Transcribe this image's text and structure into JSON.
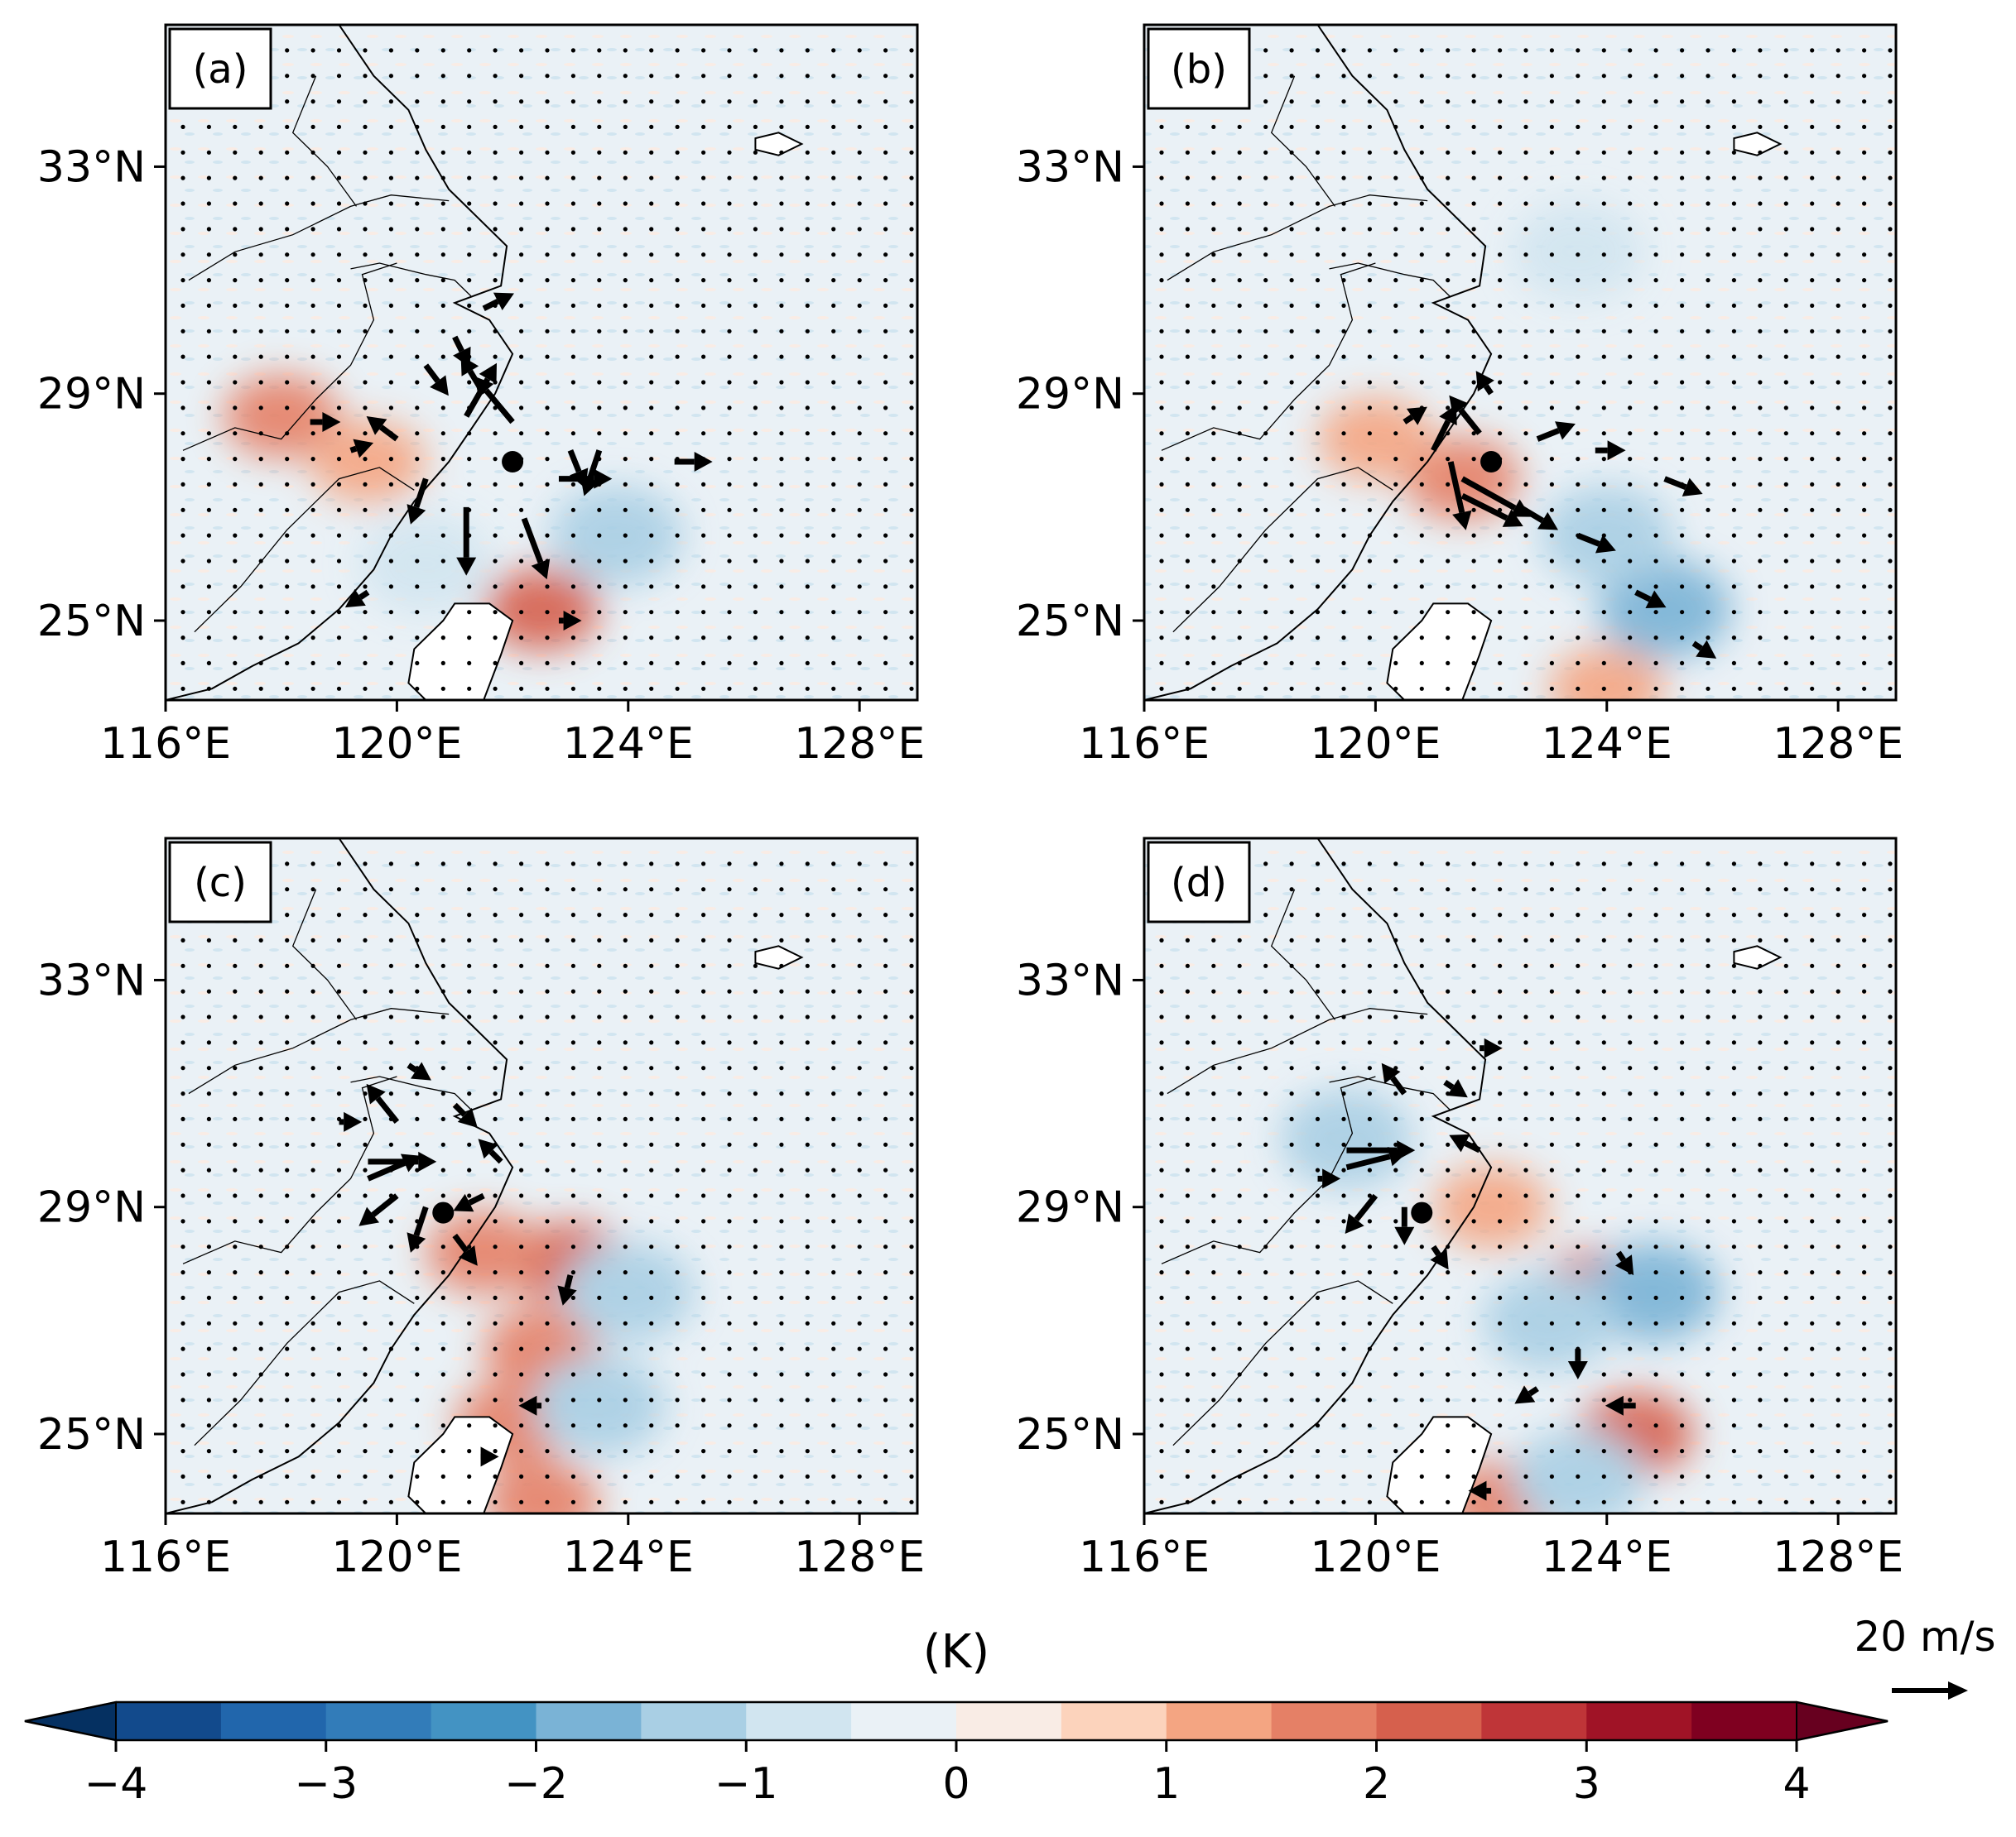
{
  "figure": {
    "colorbar_label": "(K)",
    "colorbar_ticks": [
      "−4",
      "−3",
      "−2",
      "−1",
      "0",
      "1",
      "2",
      "3",
      "4"
    ],
    "colorbar_range": [
      -4,
      4
    ],
    "colorbar_colors": [
      "#124a8c",
      "#2166ac",
      "#327cb9",
      "#4393c3",
      "#7ab3d6",
      "#a9cfe4",
      "#d1e5f0",
      "#eaf1f6",
      "#f9ece5",
      "#fcd3bc",
      "#f4a582",
      "#e58066",
      "#d6604d",
      "#bf3538",
      "#a01326",
      "#7f0020"
    ],
    "colorbar_under": "#053061",
    "colorbar_over": "#67001f",
    "reference_vector_label": "20 m/s",
    "reference_vector_speed": 20,
    "lon_ticks": [
      "116°E",
      "120°E",
      "124°E",
      "128°E"
    ],
    "lat_ticks": [
      "33°N",
      "29°N",
      "25°N"
    ],
    "lon_range": [
      116,
      129
    ],
    "lat_range": [
      23.6,
      35.5
    ],
    "colors": {
      "background_field": "#eaf1f6",
      "warm": "#f4a582",
      "cold": "#7ab3d6",
      "land": "#ffffff",
      "vector": "#000000"
    }
  },
  "chart_data": [
    {
      "type": "map",
      "label": "(a)",
      "center": [
        122.0,
        27.8
      ],
      "warm_anomalies": [
        [
          118.0,
          28.6,
          1.5
        ],
        [
          122.5,
          25.2,
          2.0
        ],
        [
          119.5,
          27.8,
          1.0
        ]
      ],
      "cold_anomalies": [
        [
          123.8,
          26.5,
          -1.2
        ],
        [
          120.5,
          26.0,
          -0.8
        ]
      ],
      "vectors": [
        [
          121.2,
          28.6,
          8,
          14
        ],
        [
          122.0,
          28.5,
          -10,
          12
        ],
        [
          123.0,
          28.0,
          4,
          -10
        ],
        [
          122.8,
          27.5,
          14,
          0
        ],
        [
          121.2,
          27.0,
          0,
          -18
        ],
        [
          122.2,
          26.8,
          6,
          -16
        ],
        [
          120.5,
          27.5,
          -4,
          -12
        ],
        [
          121.5,
          29.0,
          -6,
          10
        ],
        [
          120.5,
          29.5,
          6,
          -8
        ],
        [
          121.0,
          30.0,
          4,
          -8
        ],
        [
          121.5,
          30.5,
          8,
          4
        ],
        [
          118.5,
          28.5,
          8,
          0
        ],
        [
          124.8,
          27.8,
          10,
          0
        ],
        [
          123.5,
          28.0,
          -4,
          -12
        ],
        [
          122.8,
          25.0,
          6,
          0
        ],
        [
          119.2,
          28.0,
          6,
          2
        ],
        [
          120.0,
          28.2,
          -8,
          6
        ],
        [
          119.5,
          25.5,
          -6,
          -4
        ]
      ]
    },
    {
      "type": "map",
      "label": "(b)",
      "center": [
        122.0,
        27.8
      ],
      "warm_anomalies": [
        [
          121.5,
          27.5,
          1.5
        ],
        [
          120.0,
          28.2,
          1.0
        ],
        [
          124.0,
          23.8,
          1.0
        ]
      ],
      "cold_anomalies": [
        [
          125.0,
          25.2,
          -1.8
        ],
        [
          124.0,
          26.5,
          -1.2
        ],
        [
          123.5,
          31.5,
          -0.9
        ]
      ],
      "vectors": [
        [
          121.5,
          27.5,
          18,
          -10
        ],
        [
          121.5,
          27.2,
          16,
          -8
        ],
        [
          121.3,
          27.8,
          4,
          -18
        ],
        [
          121.0,
          28.0,
          6,
          12
        ],
        [
          122.8,
          28.2,
          10,
          4
        ],
        [
          123.8,
          28.0,
          8,
          0
        ],
        [
          125.0,
          27.5,
          10,
          -4
        ],
        [
          124.5,
          25.5,
          8,
          -4
        ],
        [
          123.5,
          26.5,
          10,
          -4
        ],
        [
          125.5,
          24.6,
          6,
          -4
        ],
        [
          120.5,
          28.5,
          6,
          4
        ],
        [
          122.0,
          29.0,
          -4,
          6
        ],
        [
          121.8,
          28.3,
          -8,
          10
        ],
        [
          122.5,
          27.0,
          10,
          -6
        ]
      ]
    },
    {
      "type": "map",
      "label": "(c)",
      "center": [
        120.8,
        28.9
      ],
      "warm_anomalies": [
        [
          123.0,
          28.0,
          2.0
        ],
        [
          122.5,
          26.5,
          1.5
        ],
        [
          121.5,
          28.2,
          1.8
        ],
        [
          122.0,
          25.2,
          1.8
        ],
        [
          122.5,
          23.8,
          1.5
        ]
      ],
      "cold_anomalies": [
        [
          124.0,
          27.5,
          -1.5
        ],
        [
          123.5,
          25.5,
          -1.2
        ]
      ],
      "vectors": [
        [
          119.5,
          29.8,
          18,
          0
        ],
        [
          119.5,
          29.5,
          14,
          6
        ],
        [
          120.0,
          29.2,
          -10,
          -8
        ],
        [
          120.5,
          29.0,
          -4,
          -12
        ],
        [
          121.0,
          28.5,
          6,
          -8
        ],
        [
          120.0,
          30.5,
          -8,
          10
        ],
        [
          121.0,
          30.8,
          6,
          -6
        ],
        [
          121.5,
          29.2,
          -8,
          -4
        ],
        [
          119.0,
          30.5,
          6,
          0
        ],
        [
          122.5,
          25.5,
          -6,
          0
        ],
        [
          121.5,
          24.6,
          4,
          0
        ],
        [
          123.0,
          27.8,
          -2,
          -8
        ],
        [
          121.8,
          29.8,
          -6,
          6
        ],
        [
          120.2,
          31.5,
          6,
          -4
        ]
      ]
    },
    {
      "type": "map",
      "label": "(d)",
      "center": [
        120.8,
        28.9
      ],
      "warm_anomalies": [
        [
          123.8,
          27.5,
          2.0
        ],
        [
          124.5,
          25.0,
          2.0
        ],
        [
          122.2,
          23.8,
          1.5
        ],
        [
          122.0,
          29.0,
          1.2
        ]
      ],
      "cold_anomalies": [
        [
          124.8,
          27.5,
          -1.8
        ],
        [
          123.0,
          27.0,
          -1.5
        ],
        [
          119.5,
          30.2,
          -1.2
        ],
        [
          123.5,
          24.2,
          -1.2
        ]
      ],
      "vectors": [
        [
          119.5,
          30.0,
          18,
          0
        ],
        [
          119.5,
          29.7,
          16,
          4
        ],
        [
          120.0,
          29.2,
          -8,
          -10
        ],
        [
          120.5,
          29.0,
          0,
          -10
        ],
        [
          121.0,
          28.3,
          4,
          -6
        ],
        [
          120.5,
          31.0,
          -6,
          8
        ],
        [
          121.2,
          31.2,
          6,
          -4
        ],
        [
          121.8,
          30.0,
          -8,
          4
        ],
        [
          119.0,
          29.5,
          6,
          0
        ],
        [
          124.5,
          25.5,
          -8,
          0
        ],
        [
          122.0,
          24.0,
          -6,
          0
        ],
        [
          123.5,
          26.5,
          0,
          -8
        ],
        [
          124.2,
          28.2,
          4,
          -6
        ],
        [
          121.8,
          31.8,
          6,
          0
        ],
        [
          122.8,
          25.8,
          -6,
          -4
        ]
      ]
    }
  ]
}
